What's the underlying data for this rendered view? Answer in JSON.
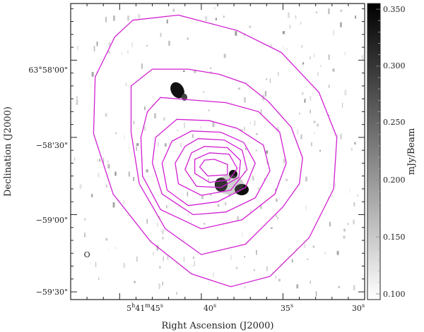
{
  "chart_data": {
    "type": "contour",
    "xlabel": "Right Ascension (J2000)",
    "ylabel": "Declination (J2000)",
    "x_ticks": [
      {
        "ra_sec": 45,
        "label_h": "5",
        "label_m": "41",
        "label_s": "45"
      },
      {
        "ra_sec": 40,
        "label": "40s"
      },
      {
        "ra_sec": 35,
        "label": "35s"
      },
      {
        "ra_sec": 30,
        "label": "30s"
      }
    ],
    "y_ticks": [
      {
        "dec_arcsec": 0,
        "label": "63°58'00\""
      },
      {
        "dec_arcsec": -30,
        "label": "−58'30\""
      },
      {
        "dec_arcsec": -60,
        "label": "−59'00\""
      },
      {
        "dec_arcsec": -90,
        "label": "−59'30\""
      }
    ],
    "xlim_ra_sec": [
      48,
      30
    ],
    "ylim_dec_arcsec": [
      22,
      -93
    ],
    "colorbar": {
      "label": "mJy/Beam",
      "range": [
        0.095,
        0.355
      ],
      "ticks": [
        "0.350",
        "0.300",
        "0.250",
        "0.200",
        "0.150",
        "0.100"
      ],
      "tick_values": [
        0.35,
        0.3,
        0.25,
        0.2,
        0.15,
        0.1
      ]
    },
    "contour_color": "#d21fd2",
    "contour_levels": [
      {
        "ra": [
          44.2,
          41.4,
          37.8,
          35.1,
          32.8,
          31.7,
          31.9,
          33.4,
          35.8,
          38.2,
          40.6,
          43.1,
          45.4,
          46.6,
          46.5,
          45.3
        ],
        "dec": [
          15.5,
          17.5,
          11.5,
          3.0,
          -12.5,
          -30.0,
          -50.0,
          -69.0,
          -84.0,
          -88.0,
          -83.0,
          -70.5,
          -52.0,
          -28.5,
          -6.5,
          9.0
        ]
      },
      {
        "ra": [
          43.0,
          40.8,
          38.9,
          37.3,
          35.9,
          34.5,
          33.8,
          34.0,
          35.0,
          37.3,
          40.0,
          42.2,
          43.8,
          44.3,
          44.3
        ],
        "dec": [
          -3.5,
          -3.5,
          -5.5,
          -9.0,
          -16.0,
          -26.0,
          -38.0,
          -48.0,
          -57.0,
          -71.5,
          -75.5,
          -65.5,
          -48.0,
          -28.0,
          -10.0
        ]
      },
      {
        "ra": [
          42.5,
          40.5,
          38.5,
          36.5,
          35.2,
          34.8,
          35.5,
          37.5,
          40.0,
          42.5,
          43.6,
          43.7,
          43.3
        ],
        "dec": [
          -14.5,
          -15.5,
          -16.5,
          -20.0,
          -28.0,
          -40.0,
          -52.0,
          -62.0,
          -65.5,
          -58.0,
          -45.0,
          -30.0,
          -20.0
        ]
      },
      {
        "ra": [
          41.5,
          39.5,
          37.8,
          36.2,
          35.8,
          36.7,
          38.5,
          40.5,
          42.4,
          43.0,
          42.8
        ],
        "dec": [
          -23.0,
          -23.5,
          -26.5,
          -33.0,
          -43.0,
          -53.5,
          -59.0,
          -60.0,
          -52.0,
          -40.0,
          -30.0
        ]
      },
      {
        "ra": [
          40.6,
          38.8,
          37.4,
          36.7,
          37.3,
          39.0,
          40.8,
          42.1,
          42.4,
          41.8
        ],
        "dec": [
          -27.5,
          -28.0,
          -32.0,
          -40.0,
          -49.5,
          -55.0,
          -56.5,
          -50.5,
          -40.0,
          -31.5
        ]
      },
      {
        "ra": [
          40.2,
          38.6,
          37.5,
          37.2,
          38.2,
          40.0,
          41.4,
          41.6,
          41.0
        ],
        "dec": [
          -30.5,
          -31.0,
          -35.0,
          -42.5,
          -50.5,
          -52.5,
          -48.0,
          -40.0,
          -33.5
        ]
      },
      {
        "ra": [
          39.8,
          38.4,
          37.6,
          37.7,
          38.8,
          40.3,
          41.0,
          40.6
        ],
        "dec": [
          -33.5,
          -34.0,
          -39.0,
          -45.5,
          -49.5,
          -49.0,
          -42.5,
          -36.0
        ]
      },
      {
        "ra": [
          39.5,
          38.3,
          37.8,
          38.3,
          39.5,
          40.4,
          40.4
        ],
        "dec": [
          -36.0,
          -36.5,
          -42.0,
          -46.5,
          -47.5,
          -44.0,
          -38.5
        ]
      },
      {
        "ra": [
          39.2,
          38.4,
          38.4,
          39.6,
          40.1,
          39.8
        ],
        "dec": [
          -38.5,
          -40.5,
          -44.5,
          -45.0,
          -41.5,
          -38.8
        ]
      }
    ],
    "beam_marker": {
      "ra": 47.0,
      "dec": -75.5,
      "label": "O"
    }
  }
}
